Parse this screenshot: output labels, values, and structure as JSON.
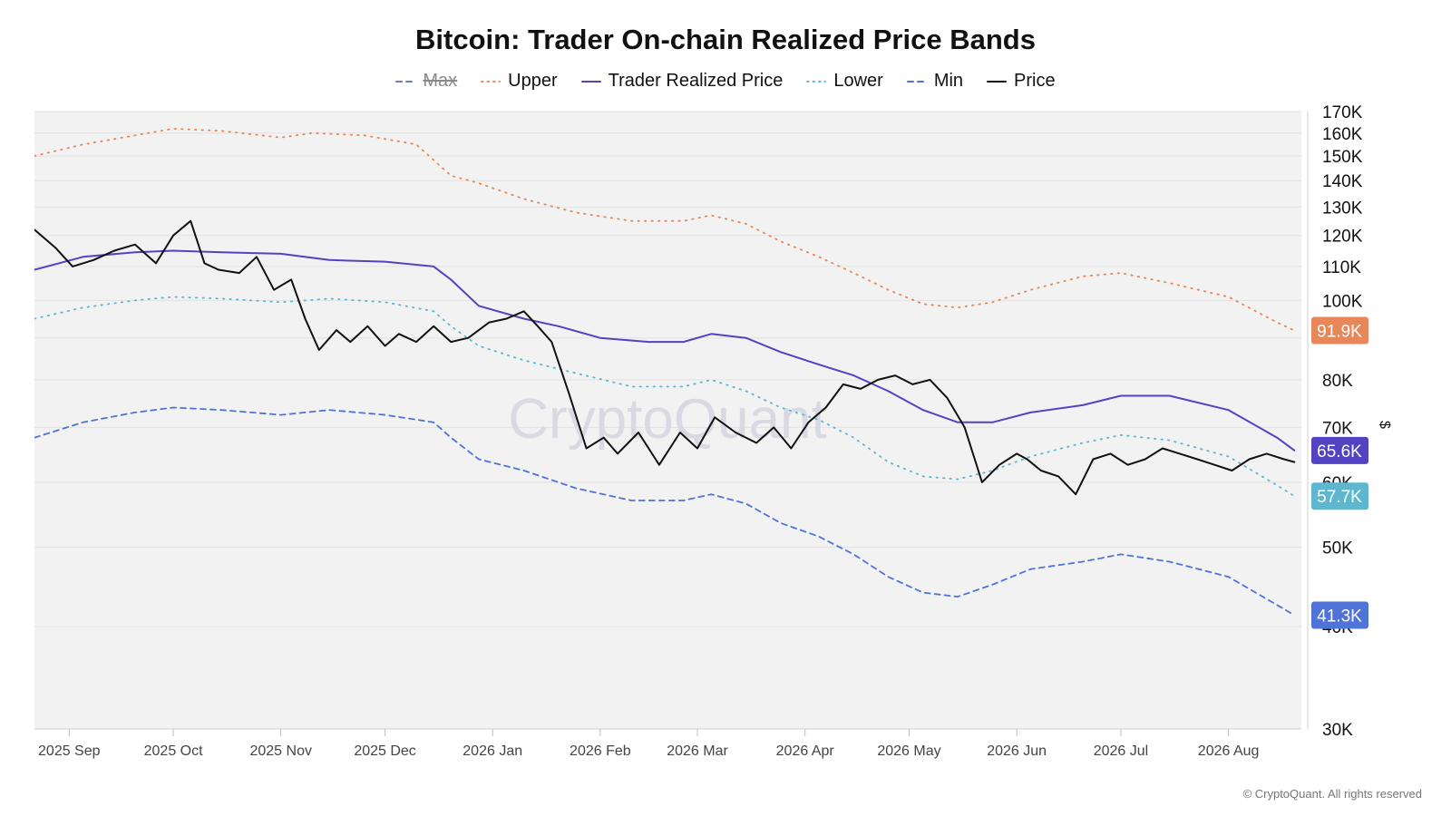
{
  "chart_data": {
    "type": "line",
    "title": "Bitcoin: Trader On-chain Realized Price Bands",
    "ylabel": "$",
    "yscale": "log",
    "ylim": [
      30000,
      170000
    ],
    "xlim": [
      "2025-08-22",
      "2026-08-22"
    ],
    "x_ticks": [
      {
        "date": "2025-09-01",
        "label": "2025 Sep"
      },
      {
        "date": "2025-10-01",
        "label": "2025 Oct"
      },
      {
        "date": "2025-11-01",
        "label": "2025 Nov"
      },
      {
        "date": "2025-12-01",
        "label": "2025 Dec"
      },
      {
        "date": "2026-01-01",
        "label": "2026 Jan"
      },
      {
        "date": "2026-02-01",
        "label": "2026 Feb"
      },
      {
        "date": "2026-03-01",
        "label": "2026 Mar"
      },
      {
        "date": "2026-04-01",
        "label": "2026 Apr"
      },
      {
        "date": "2026-05-01",
        "label": "2026 May"
      },
      {
        "date": "2026-06-01",
        "label": "2026 Jun"
      },
      {
        "date": "2026-07-01",
        "label": "2026 Jul"
      },
      {
        "date": "2026-08-01",
        "label": "2026 Aug"
      }
    ],
    "y_ticks": [
      {
        "value": 30000,
        "label": "30K"
      },
      {
        "value": 40000,
        "label": "40K"
      },
      {
        "value": 50000,
        "label": "50K"
      },
      {
        "value": 60000,
        "label": "60K"
      },
      {
        "value": 70000,
        "label": "70K"
      },
      {
        "value": 80000,
        "label": "80K"
      },
      {
        "value": 90000,
        "label": "90K"
      },
      {
        "value": 100000,
        "label": "100K"
      },
      {
        "value": 110000,
        "label": "110K"
      },
      {
        "value": 120000,
        "label": "120K"
      },
      {
        "value": 130000,
        "label": "130K"
      },
      {
        "value": 140000,
        "label": "140K"
      },
      {
        "value": 150000,
        "label": "150K"
      },
      {
        "value": 160000,
        "label": "160K"
      },
      {
        "value": 170000,
        "label": "170K"
      }
    ],
    "grid": true,
    "legend_position": "top-center",
    "watermark": "CryptoQuant",
    "series": [
      {
        "name": "Max",
        "color": "#6b7da8",
        "dash": "dashed",
        "visible": false,
        "x": [],
        "y": []
      },
      {
        "name": "Upper",
        "color": "#e8875a",
        "dash": "dotted",
        "visible": true,
        "last_label": "91.9K",
        "x": [
          "2025-08-22",
          "2025-09-05",
          "2025-09-20",
          "2025-10-01",
          "2025-10-15",
          "2025-11-01",
          "2025-11-10",
          "2025-11-25",
          "2025-12-10",
          "2025-12-20",
          "2025-12-28",
          "2026-01-10",
          "2026-01-25",
          "2026-02-10",
          "2026-02-25",
          "2026-03-05",
          "2026-03-15",
          "2026-03-25",
          "2026-04-05",
          "2026-04-15",
          "2026-04-25",
          "2026-05-05",
          "2026-05-15",
          "2026-05-25",
          "2026-06-05",
          "2026-06-20",
          "2026-07-01",
          "2026-07-15",
          "2026-08-01",
          "2026-08-15",
          "2026-08-20"
        ],
        "y": [
          150000,
          155000,
          159000,
          162000,
          161000,
          158000,
          160000,
          159000,
          155000,
          142000,
          139000,
          133000,
          128000,
          125000,
          125000,
          127000,
          124000,
          118000,
          113000,
          108000,
          103000,
          99000,
          98000,
          99500,
          103000,
          107000,
          108000,
          105000,
          101000,
          94000,
          91900
        ]
      },
      {
        "name": "Trader Realized Price",
        "color": "#5243c2",
        "dash": "solid",
        "visible": true,
        "last_label": "65.6K",
        "x": [
          "2025-08-22",
          "2025-09-05",
          "2025-09-20",
          "2025-10-01",
          "2025-10-15",
          "2025-11-01",
          "2025-11-15",
          "2025-12-01",
          "2025-12-15",
          "2025-12-20",
          "2025-12-28",
          "2026-01-10",
          "2026-01-20",
          "2026-02-01",
          "2026-02-15",
          "2026-02-25",
          "2026-03-05",
          "2026-03-15",
          "2026-03-25",
          "2026-04-05",
          "2026-04-15",
          "2026-04-25",
          "2026-05-05",
          "2026-05-15",
          "2026-05-25",
          "2026-06-05",
          "2026-06-20",
          "2026-07-01",
          "2026-07-15",
          "2026-08-01",
          "2026-08-15",
          "2026-08-20"
        ],
        "y": [
          109000,
          113000,
          114500,
          115000,
          114500,
          114000,
          112000,
          111500,
          110000,
          106000,
          98500,
          95000,
          93000,
          90000,
          89000,
          89000,
          91000,
          90000,
          86500,
          83500,
          81000,
          77500,
          73500,
          71000,
          71000,
          73000,
          74500,
          76500,
          76500,
          73500,
          68000,
          65600
        ]
      },
      {
        "name": "Lower",
        "color": "#5fb6cf",
        "dash": "dotted",
        "visible": true,
        "last_label": "57.7K",
        "x": [
          "2025-08-22",
          "2025-09-05",
          "2025-09-20",
          "2025-10-01",
          "2025-10-15",
          "2025-11-01",
          "2025-11-15",
          "2025-12-01",
          "2025-12-15",
          "2025-12-20",
          "2025-12-28",
          "2026-01-10",
          "2026-01-25",
          "2026-02-10",
          "2026-02-25",
          "2026-03-05",
          "2026-03-15",
          "2026-03-25",
          "2026-04-05",
          "2026-04-15",
          "2026-04-25",
          "2026-05-05",
          "2026-05-15",
          "2026-05-25",
          "2026-06-05",
          "2026-06-20",
          "2026-07-01",
          "2026-07-15",
          "2026-08-01",
          "2026-08-15",
          "2026-08-20"
        ],
        "y": [
          95000,
          98000,
          100000,
          101000,
          100500,
          99500,
          100500,
          99500,
          97000,
          93000,
          88000,
          84500,
          81500,
          78500,
          78500,
          80000,
          77500,
          74000,
          71500,
          68000,
          63500,
          61000,
          60500,
          62000,
          64500,
          67000,
          68500,
          67500,
          64500,
          59500,
          57700
        ]
      },
      {
        "name": "Min",
        "color": "#4f73d6",
        "dash": "dashed",
        "visible": true,
        "last_label": "41.3K",
        "x": [
          "2025-08-22",
          "2025-09-05",
          "2025-09-20",
          "2025-10-01",
          "2025-10-15",
          "2025-11-01",
          "2025-11-15",
          "2025-12-01",
          "2025-12-15",
          "2025-12-20",
          "2025-12-28",
          "2026-01-10",
          "2026-01-25",
          "2026-02-10",
          "2026-02-25",
          "2026-03-05",
          "2026-03-15",
          "2026-03-25",
          "2026-04-05",
          "2026-04-15",
          "2026-04-25",
          "2026-05-05",
          "2026-05-15",
          "2026-05-25",
          "2026-06-05",
          "2026-06-20",
          "2026-07-01",
          "2026-07-15",
          "2026-08-01",
          "2026-08-15",
          "2026-08-20"
        ],
        "y": [
          68000,
          71000,
          73000,
          74000,
          73500,
          72500,
          73500,
          72500,
          71000,
          68000,
          64000,
          62000,
          59000,
          57000,
          57000,
          58000,
          56500,
          53500,
          51500,
          49000,
          46000,
          44000,
          43500,
          45000,
          47000,
          48000,
          49000,
          48000,
          46000,
          42500,
          41300
        ]
      },
      {
        "name": "Price",
        "color": "#111111",
        "dash": "solid",
        "visible": true,
        "x": [
          "2025-08-22",
          "2025-08-28",
          "2025-09-02",
          "2025-09-08",
          "2025-09-14",
          "2025-09-20",
          "2025-09-26",
          "2025-10-01",
          "2025-10-06",
          "2025-10-10",
          "2025-10-14",
          "2025-10-20",
          "2025-10-25",
          "2025-10-30",
          "2025-11-04",
          "2025-11-08",
          "2025-11-12",
          "2025-11-17",
          "2025-11-21",
          "2025-11-26",
          "2025-12-01",
          "2025-12-05",
          "2025-12-10",
          "2025-12-15",
          "2025-12-20",
          "2025-12-25",
          "2025-12-31",
          "2026-01-05",
          "2026-01-10",
          "2026-01-14",
          "2026-01-18",
          "2026-01-23",
          "2026-01-28",
          "2026-02-02",
          "2026-02-06",
          "2026-02-12",
          "2026-02-18",
          "2026-02-24",
          "2026-03-01",
          "2026-03-06",
          "2026-03-12",
          "2026-03-18",
          "2026-03-23",
          "2026-03-28",
          "2026-04-02",
          "2026-04-07",
          "2026-04-12",
          "2026-04-17",
          "2026-04-22",
          "2026-04-27",
          "2026-05-02",
          "2026-05-07",
          "2026-05-12",
          "2026-05-17",
          "2026-05-22",
          "2026-05-27",
          "2026-06-01",
          "2026-06-04",
          "2026-06-08",
          "2026-06-13",
          "2026-06-18",
          "2026-06-23",
          "2026-06-28",
          "2026-07-03",
          "2026-07-08",
          "2026-07-13",
          "2026-07-18",
          "2026-07-23",
          "2026-07-28",
          "2026-08-02",
          "2026-08-07",
          "2026-08-12",
          "2026-08-17",
          "2026-08-20"
        ],
        "y": [
          122000,
          116000,
          110000,
          112000,
          115000,
          117000,
          111000,
          120000,
          125000,
          111000,
          109000,
          108000,
          113000,
          103000,
          106000,
          95000,
          87000,
          92000,
          89000,
          93000,
          88000,
          91000,
          89000,
          93000,
          89000,
          90000,
          94000,
          95000,
          97000,
          93000,
          89000,
          77000,
          66000,
          68000,
          65000,
          69000,
          63000,
          69000,
          66000,
          72000,
          69000,
          67000,
          70000,
          66000,
          71000,
          74000,
          79000,
          78000,
          80000,
          81000,
          79000,
          80000,
          76000,
          70000,
          60000,
          63000,
          65000,
          64000,
          62000,
          61000,
          58000,
          64000,
          65000,
          63000,
          64000,
          66000,
          65000,
          64000,
          63000,
          62000,
          64000,
          65000,
          64000,
          63500
        ]
      }
    ]
  },
  "copyright": "© CryptoQuant. All rights reserved"
}
